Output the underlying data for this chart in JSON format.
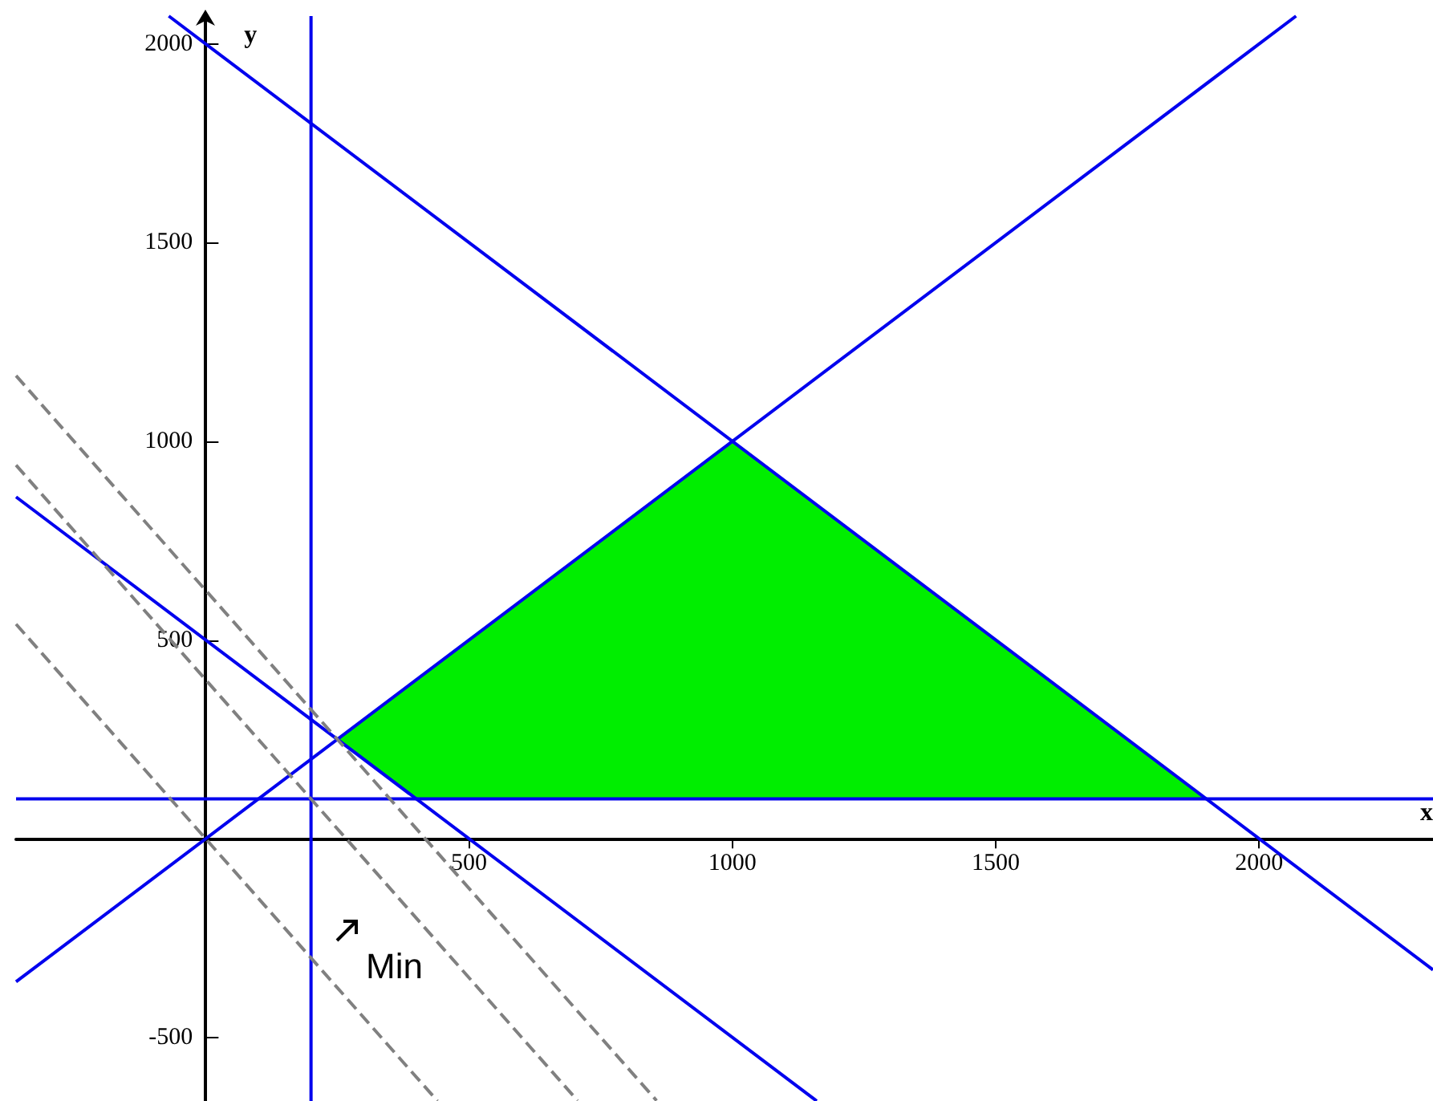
{
  "chart_data": {
    "type": "line",
    "xlabel": "x",
    "ylabel": "y",
    "xlim": [
      -360,
      2330
    ],
    "ylim": [
      -660,
      2070
    ],
    "xticks": [
      500,
      1000,
      1500,
      2000
    ],
    "yticks": [
      -500,
      500,
      1000,
      1500,
      2000
    ],
    "grid": false,
    "marker": "none",
    "series": [
      {
        "type": "area",
        "color": "#00ee00",
        "x": [
          250,
          1000,
          1900,
          400
        ],
        "values": [
          250,
          1000,
          100,
          100
        ]
      },
      {
        "color": "#0000ee",
        "x": [
          200,
          200
        ],
        "values": [
          -660,
          2070
        ]
      },
      {
        "color": "#0000ee",
        "x": [
          -360,
          2330
        ],
        "values": [
          100,
          100
        ]
      },
      {
        "color": "#0000ee",
        "x": [
          -70,
          2330
        ],
        "values": [
          2070,
          -330
        ]
      },
      {
        "color": "#0000ee",
        "x": [
          -360,
          2070
        ],
        "values": [
          -360,
          2070
        ]
      },
      {
        "color": "#0000ee",
        "x": [
          -360,
          1160
        ],
        "values": [
          860,
          -660
        ]
      },
      {
        "color": "#808080",
        "line_style": "dashed",
        "x": [
          -360,
          440
        ],
        "values": [
          540,
          -660
        ]
      },
      {
        "color": "#808080",
        "line_style": "dashed",
        "x": [
          -360,
          706
        ],
        "values": [
          940,
          -659
        ]
      },
      {
        "color": "#808080",
        "line_style": "dashed",
        "x": [
          -360,
          856
        ],
        "values": [
          1165,
          -659
        ]
      }
    ],
    "annotations": [
      "Min"
    ]
  }
}
